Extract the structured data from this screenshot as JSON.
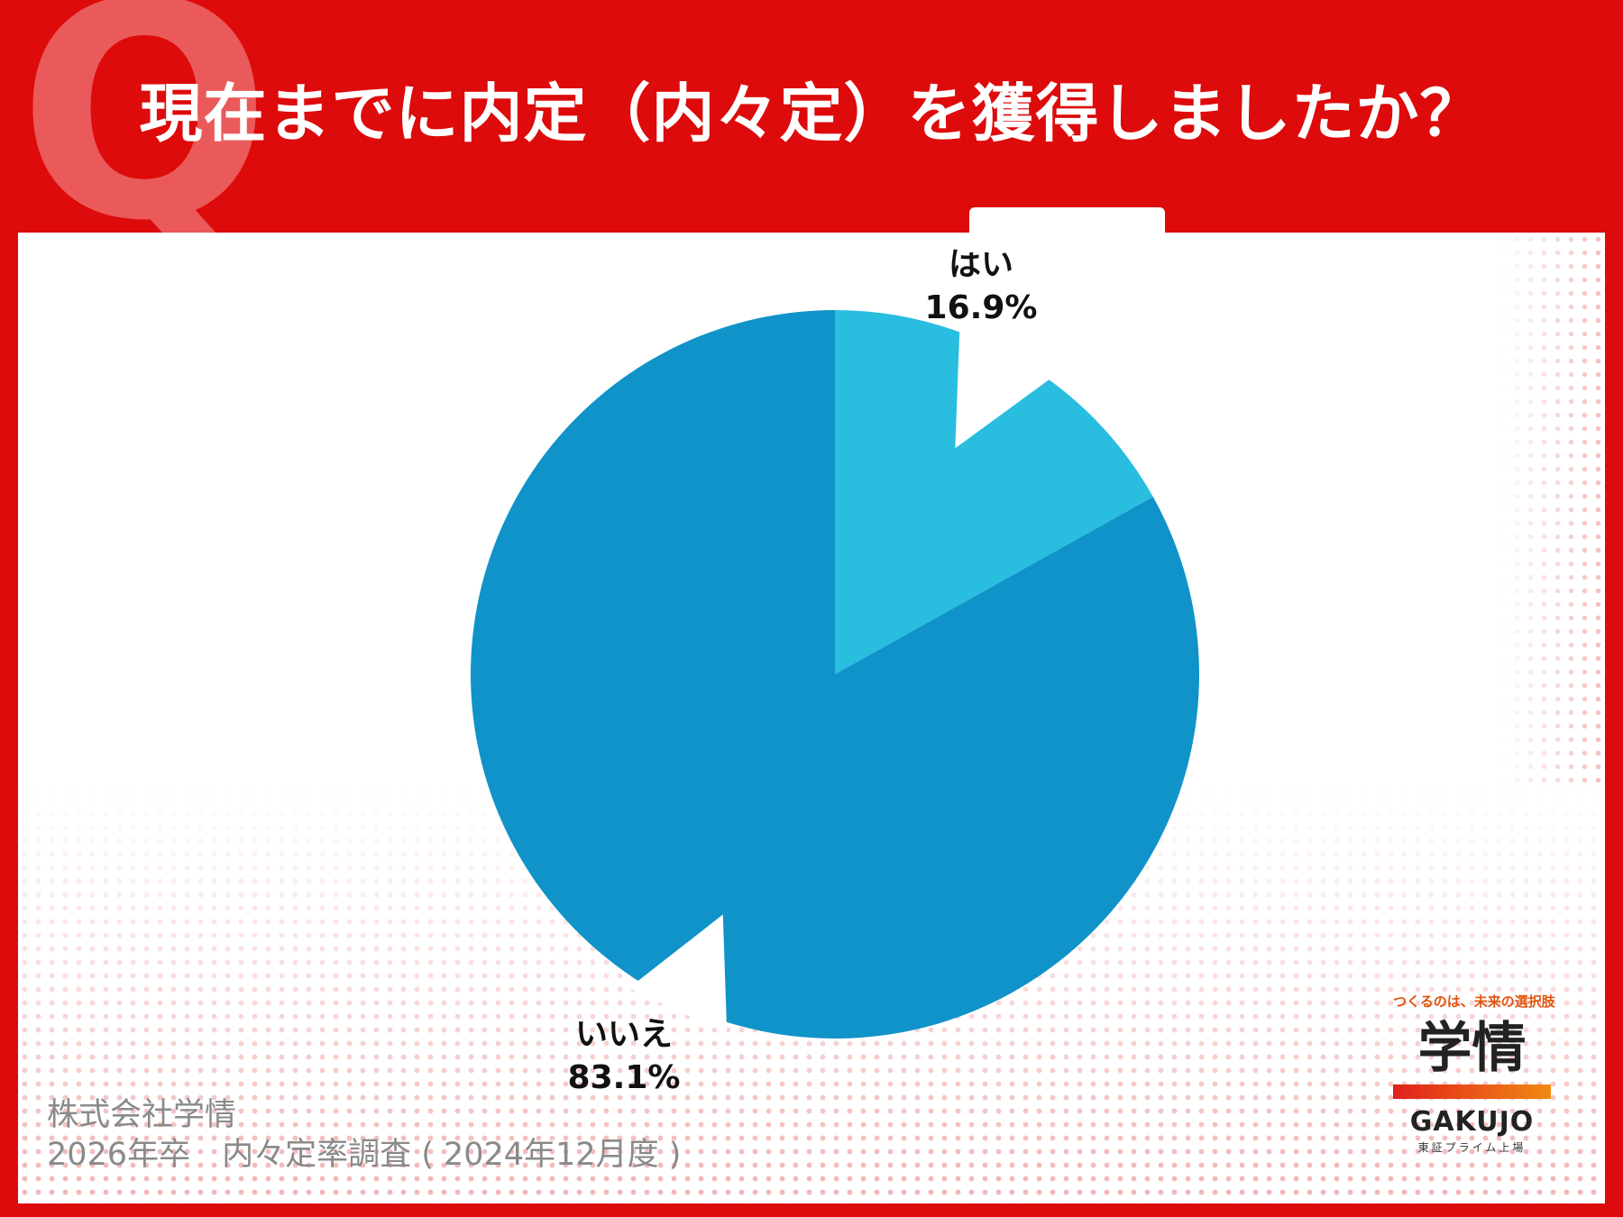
{
  "header": {
    "q_mark": "Q",
    "title": "現在までに内定（内々定）を獲得しましたか？"
  },
  "colors": {
    "header_bg": "#dd0b0b",
    "yes_slice": "#29bde0",
    "no_slice": "#0f93c8"
  },
  "chart_data": {
    "type": "pie",
    "title": "現在までに内定（内々定）を獲得しましたか？",
    "categories": [
      "はい",
      "いいえ"
    ],
    "values": [
      16.9,
      83.1
    ],
    "labels": [
      {
        "name": "はい",
        "value": "16.9%"
      },
      {
        "name": "いいえ",
        "value": "83.1%"
      }
    ],
    "start_angle_deg": 0,
    "direction": "clockwise"
  },
  "source": {
    "line1": "株式会社学情",
    "line2": "2026年卒　内々定率調査 ( 2024年12月度 )"
  },
  "logo": {
    "tagline": "つくるのは、未来の選択肢",
    "name_kanji": "学情",
    "name_en": "GAKUJO",
    "listing": "東証プライム上場"
  }
}
